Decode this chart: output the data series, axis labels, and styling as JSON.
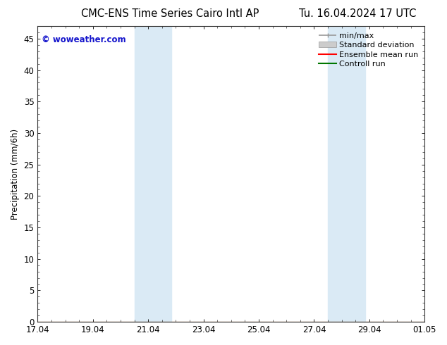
{
  "title_left": "CMC-ENS Time Series Cairo Intl AP",
  "title_right": "Tu. 16.04.2024 17 UTC",
  "ylabel": "Precipitation (mm/6h)",
  "xlim": [
    0,
    14
  ],
  "ylim": [
    0,
    47
  ],
  "yticks": [
    0,
    5,
    10,
    15,
    20,
    25,
    30,
    35,
    40,
    45
  ],
  "xtick_labels": [
    "17.04",
    "19.04",
    "21.04",
    "23.04",
    "25.04",
    "27.04",
    "29.04",
    "01.05"
  ],
  "xtick_positions": [
    0,
    2,
    4,
    6,
    8,
    10,
    12,
    14
  ],
  "shaded_bands": [
    {
      "x_start": 3.7,
      "x_end": 4.3,
      "color": "#daeaf5"
    },
    {
      "x_start": 4.3,
      "x_end": 4.85,
      "color": "#daeaf5"
    },
    {
      "x_start": 10.7,
      "x_end": 11.3,
      "color": "#daeaf5"
    },
    {
      "x_start": 11.3,
      "x_end": 11.85,
      "color": "#daeaf5"
    }
  ],
  "watermark": "© woweather.com",
  "watermark_color": "#1515cc",
  "legend_items": [
    {
      "label": "min/max",
      "color": "#aaaaaa"
    },
    {
      "label": "Standard deviation",
      "color": "#cccccc"
    },
    {
      "label": "Ensemble mean run",
      "color": "#ff0000"
    },
    {
      "label": "Controll run",
      "color": "#007700"
    }
  ],
  "bg_color": "#ffffff",
  "plot_bg_color": "#ffffff",
  "title_fontsize": 10.5,
  "tick_fontsize": 8.5,
  "legend_fontsize": 8,
  "ylabel_fontsize": 8.5
}
